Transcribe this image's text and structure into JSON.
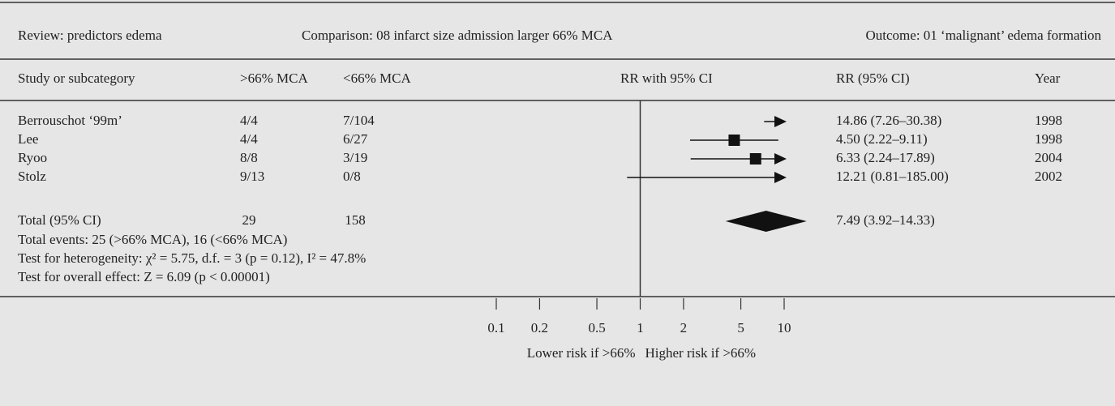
{
  "header": {
    "review": "Review:  predictors edema",
    "comparison": "Comparison:  08 infarct size admission larger 66% MCA",
    "outcome": "Outcome:  01 ‘malignant’ edema formation"
  },
  "chart_data": {
    "type": "forest",
    "columns": {
      "study": "Study or subcategory",
      "treat": ">66% MCA",
      "control": "<66% MCA",
      "plot": "RR with 95% CI",
      "ci": "RR (95% CI)",
      "year": "Year"
    },
    "studies": [
      {
        "name": "Berrouschot ‘99m’",
        "treat": "4/4",
        "control": "7/104",
        "rr": 14.86,
        "lo": 7.26,
        "hi": 30.38,
        "label": "14.86 (7.26–30.38)",
        "year": 1998
      },
      {
        "name": "Lee",
        "treat": "4/4",
        "control": "6/27",
        "rr": 4.5,
        "lo": 2.22,
        "hi": 9.11,
        "label": "4.50 (2.22–9.11)",
        "year": 1998
      },
      {
        "name": "Ryoo",
        "treat": "8/8",
        "control": "3/19",
        "rr": 6.33,
        "lo": 2.24,
        "hi": 17.89,
        "label": "6.33 (2.24–17.89)",
        "year": 2004
      },
      {
        "name": "Stolz",
        "treat": "9/13",
        "control": "0/8",
        "rr": 12.21,
        "lo": 0.81,
        "hi": 185.0,
        "label": "12.21 (0.81–185.00)",
        "year": 2002
      }
    ],
    "total": {
      "name": "Total (95% CI)",
      "treat": 29,
      "control": 158,
      "rr": 7.49,
      "lo": 3.92,
      "hi": 14.33,
      "label": "7.49 (3.92–14.33)"
    },
    "notes": [
      "Total events: 25 (>66% MCA), 16 (<66% MCA)",
      "Test for heterogeneity: χ² = 5.75, d.f. = 3 (p = 0.12), I² = 47.8%",
      "Test for overall effect: Z = 6.09 (p < 0.00001)"
    ],
    "log": true,
    "xlim": [
      0.1,
      10
    ],
    "xticks": [
      0.1,
      0.2,
      0.5,
      1,
      2,
      5,
      10
    ],
    "xlabel_left": "Lower risk if >66%",
    "xlabel_right": "Higher risk if >66%",
    "color": "#111111"
  }
}
